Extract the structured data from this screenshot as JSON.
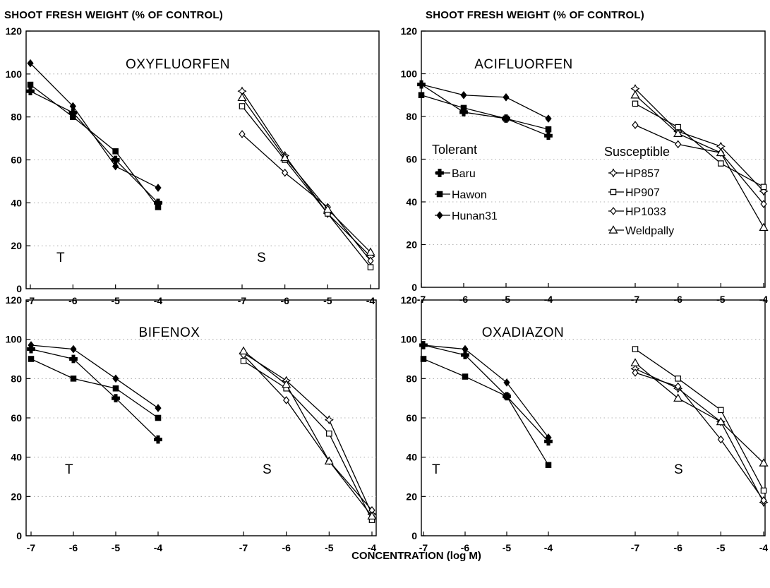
{
  "figure": {
    "ylabel": "SHOOT FRESH  WEIGHT (% OF CONTROL)",
    "xlabel": "CONCENTRATION (log M)"
  },
  "legend": {
    "tolerant_title": "Tolerant",
    "susceptible_title": "Susceptible",
    "tolerant": [
      {
        "name": "Baru",
        "marker": "plus-filled"
      },
      {
        "name": "Hawon",
        "marker": "square-filled"
      },
      {
        "name": "Hunan31",
        "marker": "diamond-filled"
      }
    ],
    "susceptible": [
      {
        "name": "HP857",
        "marker": "plus-open"
      },
      {
        "name": "HP907",
        "marker": "square-open"
      },
      {
        "name": "HP1033",
        "marker": "diamond-open"
      },
      {
        "name": "Weldpally",
        "marker": "triangle-open"
      }
    ]
  },
  "chart_data": [
    {
      "type": "line",
      "title": "OXYFLUORFEN",
      "ylim": [
        0,
        120
      ],
      "y_ticks": [
        0,
        20,
        40,
        60,
        80,
        100,
        120
      ],
      "groups": [
        {
          "label": "T",
          "x": [
            -7,
            -6,
            -5,
            -4
          ],
          "series": [
            {
              "name": "Baru",
              "marker": "plus-filled",
              "values": [
                92,
                82,
                60,
                40
              ]
            },
            {
              "name": "Hawon",
              "marker": "square-filled",
              "values": [
                95,
                80,
                64,
                38
              ]
            },
            {
              "name": "Hunan31",
              "marker": "diamond-filled",
              "values": [
                105,
                85,
                57,
                47
              ]
            }
          ]
        },
        {
          "label": "S",
          "x": [
            -7,
            -6,
            -5,
            -4
          ],
          "series": [
            {
              "name": "HP857",
              "marker": "plus-open",
              "values": [
                92,
                62,
                35,
                15
              ]
            },
            {
              "name": "HP907",
              "marker": "square-open",
              "values": [
                85,
                60,
                35,
                10
              ]
            },
            {
              "name": "HP1033",
              "marker": "diamond-open",
              "values": [
                72,
                54,
                38,
                13
              ]
            },
            {
              "name": "Weldpally",
              "marker": "triangle-open",
              "values": [
                89,
                61,
                37,
                17
              ]
            }
          ]
        }
      ]
    },
    {
      "type": "line",
      "title": "ACIFLUORFEN",
      "ylim": [
        0,
        120
      ],
      "y_ticks": [
        0,
        20,
        40,
        60,
        80,
        100,
        120
      ],
      "groups": [
        {
          "label": "",
          "x": [
            -7,
            -6,
            -5,
            -4
          ],
          "series": [
            {
              "name": "Baru",
              "marker": "plus-filled",
              "values": [
                95,
                82,
                79,
                71
              ]
            },
            {
              "name": "Hawon",
              "marker": "square-filled",
              "values": [
                90,
                84,
                79,
                74
              ]
            },
            {
              "name": "Hunan31",
              "marker": "diamond-filled",
              "values": [
                95,
                90,
                89,
                79
              ]
            }
          ]
        },
        {
          "label": "",
          "x": [
            -7,
            -6,
            -5,
            -4
          ],
          "series": [
            {
              "name": "HP857",
              "marker": "plus-open",
              "values": [
                93,
                73,
                66,
                45
              ]
            },
            {
              "name": "HP907",
              "marker": "square-open",
              "values": [
                86,
                75,
                58,
                47
              ]
            },
            {
              "name": "HP1033",
              "marker": "diamond-open",
              "values": [
                76,
                67,
                63,
                39
              ]
            },
            {
              "name": "Weldpally",
              "marker": "triangle-open",
              "values": [
                90,
                72,
                63,
                28
              ]
            }
          ]
        }
      ]
    },
    {
      "type": "line",
      "title": "BIFENOX",
      "ylim": [
        0,
        120
      ],
      "y_ticks": [
        0,
        20,
        40,
        60,
        80,
        100,
        120
      ],
      "groups": [
        {
          "label": "T",
          "x": [
            -7,
            -6,
            -5,
            -4
          ],
          "series": [
            {
              "name": "Baru",
              "marker": "plus-filled",
              "values": [
                95,
                90,
                70,
                49
              ]
            },
            {
              "name": "Hawon",
              "marker": "square-filled",
              "values": [
                90,
                80,
                75,
                60
              ]
            },
            {
              "name": "Hunan31",
              "marker": "diamond-filled",
              "values": [
                97,
                95,
                80,
                65
              ]
            }
          ]
        },
        {
          "label": "S",
          "x": [
            -7,
            -6,
            -5,
            -4
          ],
          "series": [
            {
              "name": "HP857",
              "marker": "plus-open",
              "values": [
                93,
                79,
                59,
                11
              ]
            },
            {
              "name": "HP907",
              "marker": "square-open",
              "values": [
                89,
                75,
                52,
                8
              ]
            },
            {
              "name": "HP1033",
              "marker": "diamond-open",
              "values": [
                92,
                69,
                38,
                13
              ]
            },
            {
              "name": "Weldpally",
              "marker": "triangle-open",
              "values": [
                94,
                77,
                38,
                10
              ]
            }
          ]
        }
      ]
    },
    {
      "type": "line",
      "title": "OXADIAZON",
      "ylim": [
        0,
        120
      ],
      "y_ticks": [
        0,
        20,
        40,
        60,
        80,
        100,
        120
      ],
      "groups": [
        {
          "label": "T",
          "x": [
            -7,
            -6,
            -5,
            -4
          ],
          "series": [
            {
              "name": "Baru",
              "marker": "plus-filled",
              "values": [
                97,
                92,
                71,
                48
              ]
            },
            {
              "name": "Hawon",
              "marker": "square-filled",
              "values": [
                90,
                81,
                71,
                36
              ]
            },
            {
              "name": "Hunan31",
              "marker": "diamond-filled",
              "values": [
                97,
                95,
                78,
                50
              ]
            }
          ]
        },
        {
          "label": "S",
          "x": [
            -7,
            -6,
            -5,
            -4
          ],
          "series": [
            {
              "name": "HP857",
              "marker": "plus-open",
              "values": [
                85,
                75,
                58,
                17
              ]
            },
            {
              "name": "HP907",
              "marker": "square-open",
              "values": [
                95,
                80,
                64,
                23
              ]
            },
            {
              "name": "HP1033",
              "marker": "diamond-open",
              "values": [
                83,
                76,
                49,
                18
              ]
            },
            {
              "name": "Weldpally",
              "marker": "triangle-open",
              "values": [
                88,
                70,
                58,
                37
              ]
            }
          ]
        }
      ]
    }
  ]
}
